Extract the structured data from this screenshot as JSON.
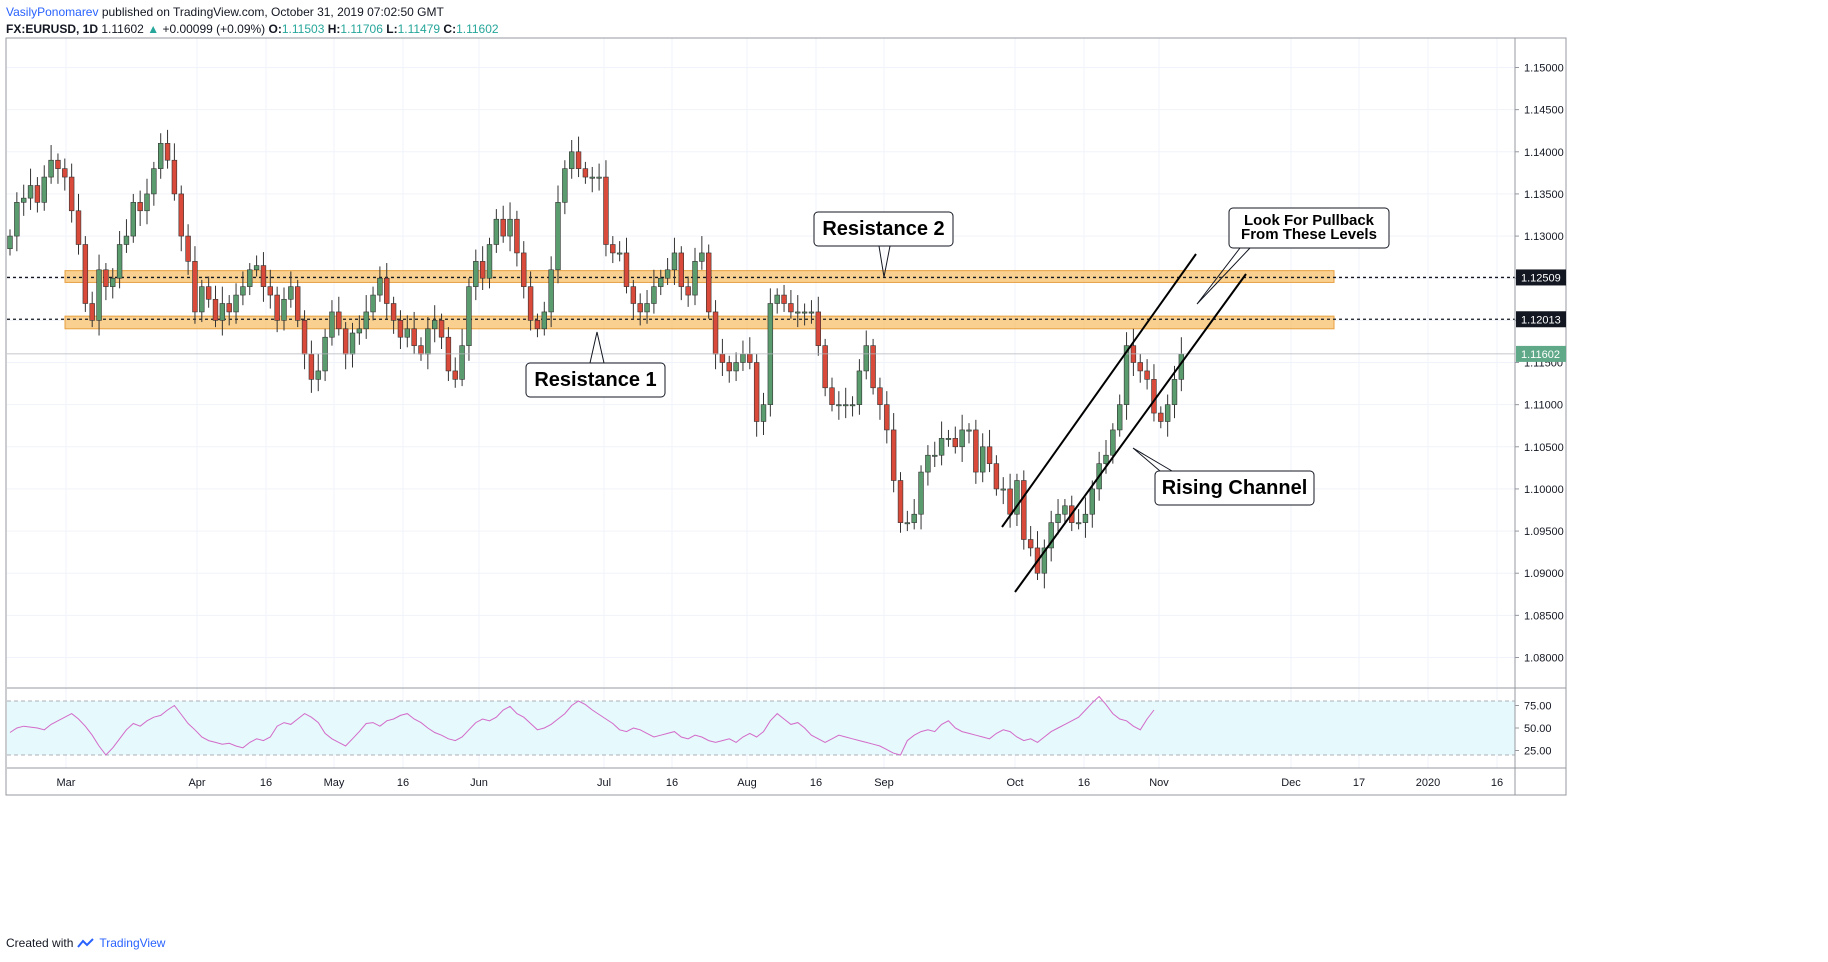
{
  "header": {
    "author": "VasilyPonomarev",
    "published": "published on TradingView.com, October 31, 2019 07:02:50 GMT"
  },
  "quote": {
    "symbol": "FX:EURUSD, 1D",
    "last": "1.11602",
    "arrow": "▲",
    "change": "+0.00099 (+0.09%)",
    "o_label": "O:",
    "o": "1.11503",
    "h_label": "H:",
    "h": "1.11706",
    "l_label": "L:",
    "l": "1.11479",
    "c_label": "C:",
    "c": "1.11602"
  },
  "footer": {
    "created": "Created with",
    "brand": "TradingView"
  },
  "colors": {
    "up": "#26a69a",
    "down": "#ef5350",
    "up_body": "#5b9c6e",
    "down_body": "#d94a3a",
    "zone": "#f7c06a",
    "rsi": "#d36bc8",
    "rsi_bg": "#e6f9fd"
  },
  "chart_data": {
    "type": "candlestick",
    "symbol": "EURUSD",
    "timeframe": "1D",
    "y_range": [
      1.0765,
      1.1535
    ],
    "y_ticks": [
      "1.15000",
      "1.14500",
      "1.14000",
      "1.13500",
      "1.13000",
      "1.12500",
      "1.12000",
      "1.11500",
      "1.11000",
      "1.10500",
      "1.10000",
      "1.09500",
      "1.09000",
      "1.08500",
      "1.08000"
    ],
    "x_ticks": [
      "Mar",
      "Apr",
      "16",
      "May",
      "16",
      "Jun",
      "Jul",
      "16",
      "Aug",
      "16",
      "Sep",
      "Oct",
      "16",
      "Nov",
      "Dec",
      "17",
      "2020",
      "16"
    ],
    "price_labels": [
      {
        "value": 1.12509,
        "text": "1.12509",
        "style": "dark"
      },
      {
        "value": 1.12013,
        "text": "1.12013",
        "style": "dark"
      },
      {
        "value": 1.11602,
        "text": "1.11602",
        "style": "last"
      }
    ],
    "zones": [
      {
        "low": 1.1245,
        "high": 1.1259,
        "level": 1.12509
      },
      {
        "low": 1.119,
        "high": 1.1205,
        "level": 1.12013
      }
    ],
    "closes": [
      1.13,
      1.134,
      1.1345,
      1.136,
      1.134,
      1.137,
      1.139,
      1.138,
      1.137,
      1.133,
      1.129,
      1.122,
      1.12,
      1.126,
      1.124,
      1.125,
      1.129,
      1.13,
      1.134,
      1.133,
      1.135,
      1.138,
      1.141,
      1.139,
      1.135,
      1.13,
      1.127,
      1.121,
      1.124,
      1.1225,
      1.12,
      1.122,
      1.121,
      1.123,
      1.124,
      1.126,
      1.1265,
      1.124,
      1.123,
      1.12,
      1.1225,
      1.124,
      1.12,
      1.116,
      1.113,
      1.114,
      1.118,
      1.121,
      1.119,
      1.116,
      1.1185,
      1.119,
      1.121,
      1.123,
      1.125,
      1.122,
      1.12,
      1.118,
      1.119,
      1.117,
      1.116,
      1.119,
      1.12,
      1.118,
      1.114,
      1.113,
      1.117,
      1.124,
      1.127,
      1.125,
      1.129,
      1.132,
      1.13,
      1.132,
      1.128,
      1.124,
      1.12,
      1.119,
      1.121,
      1.126,
      1.134,
      1.138,
      1.14,
      1.138,
      1.137,
      1.137,
      1.137,
      1.129,
      1.128,
      1.128,
      1.124,
      1.122,
      1.121,
      1.122,
      1.124,
      1.125,
      1.126,
      1.128,
      1.124,
      1.123,
      1.127,
      1.128,
      1.121,
      1.116,
      1.115,
      1.114,
      1.115,
      1.116,
      1.115,
      1.108,
      1.11,
      1.122,
      1.123,
      1.122,
      1.121,
      1.121,
      1.121,
      1.121,
      1.117,
      1.112,
      1.11,
      1.11,
      1.11,
      1.11,
      1.114,
      1.117,
      1.112,
      1.11,
      1.107,
      1.101,
      1.096,
      1.096,
      1.097,
      1.102,
      1.104,
      1.104,
      1.106,
      1.106,
      1.105,
      1.107,
      1.107,
      1.102,
      1.105,
      1.103,
      1.1,
      1.1,
      1.097,
      1.101,
      1.094,
      1.093,
      1.09,
      1.093,
      1.096,
      1.097,
      1.098,
      1.096,
      1.096,
      1.097,
      1.1,
      1.103,
      1.104,
      1.107,
      1.11,
      1.117,
      1.115,
      1.114,
      1.113,
      1.109,
      1.108,
      1.11,
      1.113,
      1.116
    ],
    "last_close": 1.11602,
    "annotations": [
      {
        "text": "Resistance 1"
      },
      {
        "text": "Resistance 2"
      },
      {
        "lines": [
          "Look For Pullback",
          "From These Levels"
        ]
      },
      {
        "text": "Rising Channel"
      }
    ],
    "rsi": {
      "levels": [
        25,
        50,
        75
      ],
      "upper_band": 80,
      "lower_band": 20,
      "tick_labels": [
        "75.00",
        "50.00",
        "25.00"
      ],
      "values": [
        45,
        50,
        52,
        51,
        50,
        48,
        54,
        58,
        62,
        66,
        60,
        52,
        42,
        30,
        20,
        28,
        38,
        48,
        55,
        52,
        58,
        62,
        64,
        70,
        75,
        65,
        55,
        48,
        40,
        36,
        34,
        32,
        33,
        30,
        28,
        34,
        38,
        36,
        40,
        52,
        56,
        54,
        60,
        66,
        62,
        56,
        44,
        38,
        34,
        30,
        38,
        46,
        55,
        56,
        52,
        58,
        60,
        64,
        66,
        60,
        56,
        50,
        45,
        42,
        38,
        36,
        40,
        48,
        56,
        60,
        58,
        62,
        70,
        74,
        66,
        62,
        55,
        48,
        50,
        54,
        60,
        66,
        75,
        80,
        76,
        70,
        65,
        60,
        55,
        48,
        46,
        50,
        48,
        44,
        40,
        42,
        44,
        46,
        40,
        38,
        42,
        40,
        36,
        34,
        36,
        38,
        34,
        40,
        44,
        40,
        46,
        58,
        66,
        60,
        54,
        56,
        50,
        42,
        38,
        34,
        38,
        42,
        40,
        38,
        36,
        34,
        32,
        30,
        26,
        22,
        20,
        36,
        42,
        46,
        48,
        46,
        54,
        58,
        50,
        46,
        44,
        42,
        40,
        38,
        44,
        48,
        46,
        40,
        36,
        38,
        34,
        40,
        46,
        50,
        54,
        58,
        62,
        70,
        78,
        85,
        76,
        66,
        60,
        58,
        52,
        48,
        60,
        70
      ]
    },
    "legend": "none",
    "grid": true
  }
}
